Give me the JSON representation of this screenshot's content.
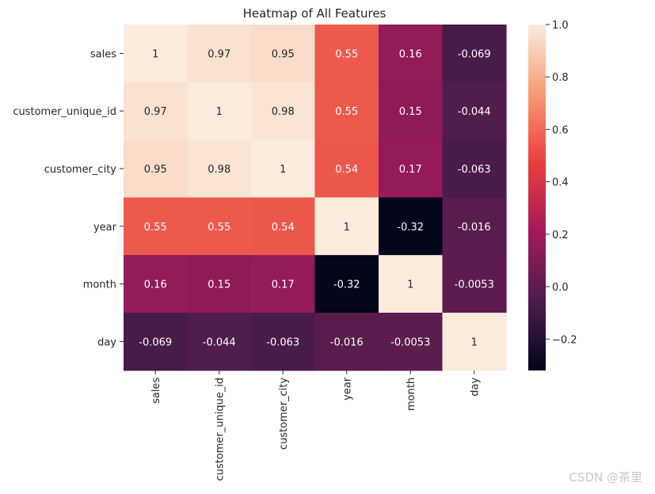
{
  "chart_data": {
    "type": "heatmap",
    "title": "Heatmap of All Features",
    "xlabel": "",
    "ylabel": "",
    "row_labels": [
      "sales",
      "customer_unique_id",
      "customer_city",
      "year",
      "month",
      "day"
    ],
    "col_labels": [
      "sales",
      "customer_unique_id",
      "customer_city",
      "year",
      "month",
      "day"
    ],
    "values": [
      [
        1,
        0.97,
        0.95,
        0.55,
        0.16,
        -0.069
      ],
      [
        0.97,
        1,
        0.98,
        0.55,
        0.15,
        -0.044
      ],
      [
        0.95,
        0.98,
        1,
        0.54,
        0.17,
        -0.063
      ],
      [
        0.55,
        0.55,
        0.54,
        1,
        -0.32,
        -0.016
      ],
      [
        0.16,
        0.15,
        0.17,
        -0.32,
        1,
        -0.0053
      ],
      [
        -0.069,
        -0.044,
        -0.063,
        -0.016,
        -0.0053,
        1
      ]
    ],
    "value_labels": [
      [
        "1",
        "0.97",
        "0.95",
        "0.55",
        "0.16",
        "-0.069"
      ],
      [
        "0.97",
        "1",
        "0.98",
        "0.55",
        "0.15",
        "-0.044"
      ],
      [
        "0.95",
        "0.98",
        "1",
        "0.54",
        "0.17",
        "-0.063"
      ],
      [
        "0.55",
        "0.55",
        "0.54",
        "1",
        "-0.32",
        "-0.016"
      ],
      [
        "0.16",
        "0.15",
        "0.17",
        "-0.32",
        "1",
        "-0.0053"
      ],
      [
        "-0.069",
        "-0.044",
        "-0.063",
        "-0.016",
        "-0.0053",
        "1"
      ]
    ],
    "colorbar": {
      "vmin": -0.32,
      "vmax": 1.0,
      "ticks": [
        1.0,
        0.8,
        0.6,
        0.4,
        0.2,
        0.0,
        -0.2
      ],
      "tick_labels": [
        "1.0",
        "0.8",
        "0.6",
        "0.4",
        "0.2",
        "0.0",
        "−0.2"
      ],
      "colormap": "rocket",
      "colormap_stops": [
        "#03051a",
        "#4c1d4b",
        "#a11a5b",
        "#e83f3f",
        "#f69c73",
        "#faebdd"
      ]
    }
  },
  "watermark": "CSDN @茶里"
}
